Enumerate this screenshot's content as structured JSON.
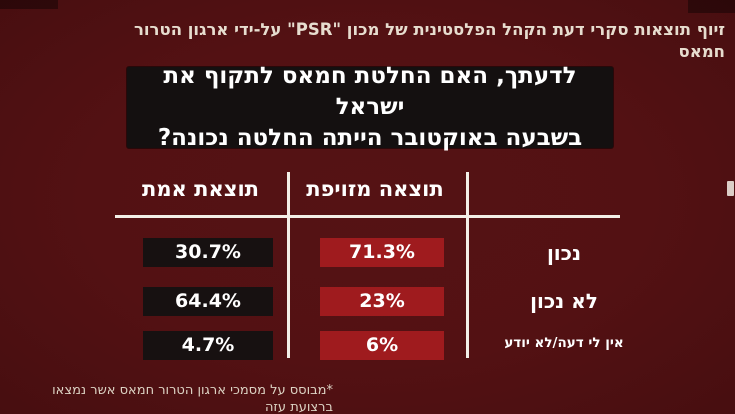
{
  "header": {
    "title": "זיוף תוצאות סקרי דעת הקהל הפלסטינית של מכון \"PSR\" על-ידי ארגון הטרור חמאס"
  },
  "question": {
    "line1": "לדעתך, האם החלטת חמאס לתקוף את ישראל",
    "line2": "בשבעה באוקטובר הייתה החלטה נכונה?"
  },
  "chart_data": {
    "type": "table",
    "title": "לדעתך, האם החלטת חמאס לתקוף את ישראל בשבעה באוקטובר הייתה החלטה נכונה?",
    "columns": [
      "תוצאת אמת",
      "תוצאה מזויפת"
    ],
    "rows": [
      {
        "label": "נכון",
        "true_result": "30.7%",
        "fake_result": "71.3%"
      },
      {
        "label": "לא נכון",
        "true_result": "64.4%",
        "fake_result": "23%"
      },
      {
        "label": "אין לי דעה/לא יודע",
        "true_result": "4.7%",
        "fake_result": "6%"
      }
    ],
    "layout": "RTL table: right column = answer labels, middle column (red) = falsified result, left column (black) = true result"
  },
  "footer": {
    "note": "*מבוסס על מסמכי ארגון הטרור חמאס אשר נמצאו ברצועת עזה"
  },
  "colors": {
    "background": "#551214",
    "red-box": "#9f1b1e",
    "black-box": "#171111",
    "question-box": "#141010",
    "line": "#f3efe7",
    "cream": "#e7ddcf",
    "cream2": "#ddd3c4",
    "value-text": "#ffffff"
  }
}
